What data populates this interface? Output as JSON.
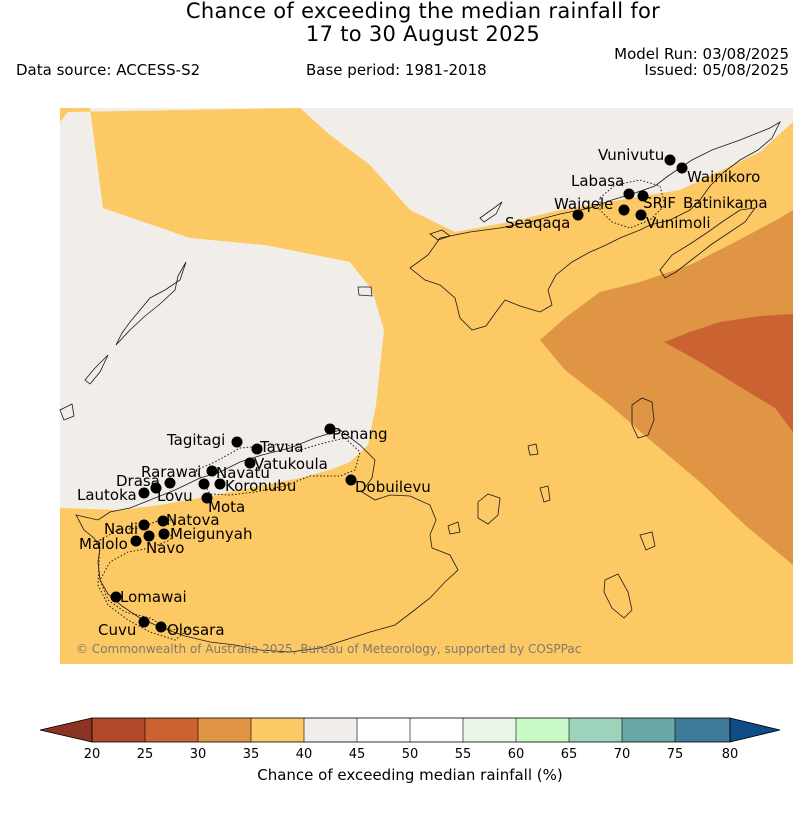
{
  "header": {
    "title_line1": "Chance of exceeding the median rainfall for",
    "title_line2": "17 to 30 August 2025",
    "data_source": "Data source: ACCESS-S2",
    "base_period": "Base period: 1981-2018",
    "model_run": "Model Run: 03/08/2025",
    "issued": "Issued: 05/08/2025"
  },
  "map": {
    "attribution": "© Commonwealth of Australia 2025, Bureau of Meteorology, supported by COSPPac",
    "station_labels": [
      "Vunivutu",
      "Wainikoro",
      "Labasa",
      "SRIF",
      "Batinikama",
      "Waiqele",
      "Seaqaqa",
      "Vunimoli",
      "Penang",
      "Tagitagi",
      "Tavua",
      "Vatukoula",
      "Rarawai",
      "Navatu",
      "Koronubu",
      "Drasa",
      "Lovu",
      "Mota",
      "Lautoka",
      "Dobuilevu",
      "Natova",
      "Nadi",
      "Meigunyah",
      "Malolo",
      "Navo",
      "Lomawai",
      "Cuvu",
      "Olosara"
    ],
    "colors": {
      "c35_40": "#fdc964",
      "c40_45": "#f1ede8",
      "c30_35": "#e09544",
      "c25_30": "#cb6232"
    }
  },
  "colorbar": {
    "label": "Chance of exceeding median rainfall (%)",
    "ticks": [
      "20",
      "25",
      "30",
      "35",
      "40",
      "45",
      "50",
      "55",
      "60",
      "65",
      "70",
      "75",
      "80"
    ],
    "under_color": "#8a3421",
    "over_color": "#0f4d86",
    "bins": [
      "#b04a28",
      "#cb6232",
      "#e09544",
      "#fdc964",
      "#f1ede8",
      "#ffffff",
      "#ffffff",
      "#eaf5ea",
      "#c9fbc9",
      "#9ed3bb",
      "#6aa7a7",
      "#3f7a9a"
    ]
  }
}
